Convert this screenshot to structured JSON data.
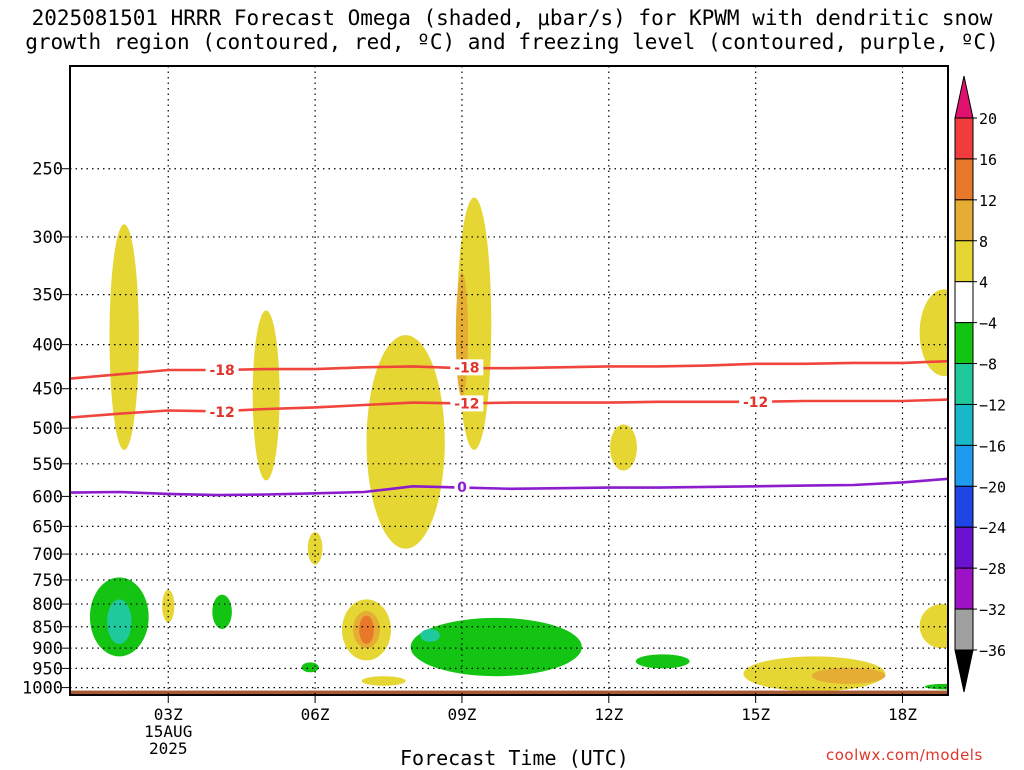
{
  "title_line1": "2025081501 HRRR Forecast Omega (shaded, μbar/s) for KPWM with dendritic snow",
  "title_line2": "growth region (contoured, red, ºC) and freezing level (contoured, purple, ºC)",
  "xlabel": "Forecast Time (UTC)",
  "credit": "coolwx.com/models",
  "chart_data": {
    "type": "heatmap",
    "product": "HRRR time-height cross section",
    "run": "2025081501",
    "station": "KPWM",
    "field_shaded": "Omega",
    "field_units": "μbar/s",
    "x_hours_range": [
      1,
      19.3
    ],
    "x_ticks": [
      {
        "hour": 3,
        "label": "03Z"
      },
      {
        "hour": 6,
        "label": "06Z"
      },
      {
        "hour": 9,
        "label": "09Z"
      },
      {
        "hour": 12,
        "label": "12Z"
      },
      {
        "hour": 15,
        "label": "15Z"
      },
      {
        "hour": 18,
        "label": "18Z"
      }
    ],
    "date_label": [
      "15AUG",
      "2025"
    ],
    "y_pressure_range": [
      1020,
      190
    ],
    "y_ticks": [
      250,
      300,
      350,
      400,
      450,
      500,
      550,
      600,
      650,
      700,
      750,
      800,
      850,
      900,
      950,
      1000
    ],
    "grid": true,
    "colorbar": {
      "levels": [
        20,
        16,
        12,
        8,
        4,
        -4,
        -8,
        -12,
        -16,
        -20,
        -24,
        -28,
        -32,
        -36
      ],
      "colors": [
        "#e0116f",
        "#f03c3c",
        "#e8782a",
        "#e5ad33",
        "#e5d634",
        "#ffffff",
        "#13c413",
        "#1fc99c",
        "#19b8c8",
        "#1e9bee",
        "#1f45e6",
        "#6a12d0",
        "#9e12c6",
        "#a0a0a0",
        "#000000"
      ]
    },
    "contours": [
      {
        "label": "-18",
        "color": "#f0453c",
        "points": [
          [
            1,
            438
          ],
          [
            2,
            433
          ],
          [
            3,
            428
          ],
          [
            4,
            428
          ],
          [
            5,
            427
          ],
          [
            6,
            427
          ],
          [
            7,
            425
          ],
          [
            8,
            424
          ],
          [
            9,
            426
          ],
          [
            10,
            426
          ],
          [
            11,
            425
          ],
          [
            12,
            424
          ],
          [
            13,
            424
          ],
          [
            14,
            423
          ],
          [
            15,
            421
          ],
          [
            16,
            421
          ],
          [
            17,
            420
          ],
          [
            18,
            420
          ],
          [
            19,
            418
          ],
          [
            19.3,
            418
          ]
        ]
      },
      {
        "label": "-12",
        "color": "#f0453c",
        "points": [
          [
            1,
            486
          ],
          [
            2,
            481
          ],
          [
            3,
            477
          ],
          [
            4,
            478
          ],
          [
            5,
            475
          ],
          [
            6,
            473
          ],
          [
            7,
            470
          ],
          [
            8,
            467
          ],
          [
            9,
            468
          ],
          [
            10,
            467
          ],
          [
            11,
            467
          ],
          [
            12,
            467
          ],
          [
            13,
            466
          ],
          [
            14,
            466
          ],
          [
            15,
            466
          ],
          [
            16,
            465
          ],
          [
            17,
            465
          ],
          [
            18,
            465
          ],
          [
            19,
            463
          ],
          [
            19.3,
            463
          ]
        ]
      },
      {
        "label": "0",
        "color": "#8c1ccc",
        "points": [
          [
            1,
            594
          ],
          [
            2,
            593
          ],
          [
            3,
            596
          ],
          [
            4,
            598
          ],
          [
            5,
            597
          ],
          [
            6,
            595
          ],
          [
            7,
            593
          ],
          [
            8,
            584
          ],
          [
            9,
            586
          ],
          [
            10,
            588
          ],
          [
            11,
            587
          ],
          [
            12,
            586
          ],
          [
            13,
            586
          ],
          [
            14,
            585
          ],
          [
            15,
            584
          ],
          [
            16,
            583
          ],
          [
            17,
            582
          ],
          [
            18,
            578
          ],
          [
            19,
            572
          ],
          [
            19.3,
            569
          ]
        ]
      }
    ],
    "contour_labels": [
      {
        "text": "-18",
        "hour": 4.1,
        "p": 428
      },
      {
        "text": "-18",
        "hour": 9.1,
        "p": 425
      },
      {
        "text": "-12",
        "hour": 4.1,
        "p": 479
      },
      {
        "text": "-12",
        "hour": 9.1,
        "p": 468
      },
      {
        "text": "-12",
        "hour": 15.0,
        "p": 466
      },
      {
        "text": "0",
        "hour": 9.0,
        "p": 585
      }
    ],
    "omega_regions": [
      {
        "color": "#e5d634",
        "hour": 2.1,
        "p_top": 290,
        "p_bottom": 530,
        "hour_width": 0.6
      },
      {
        "color": "#e5d634",
        "hour": 5.0,
        "p_top": 365,
        "p_bottom": 575,
        "hour_width": 0.55
      },
      {
        "color": "#e5d634",
        "hour": 9.25,
        "p_top": 270,
        "p_bottom": 530,
        "hour_width": 0.7
      },
      {
        "color": "#e5ad33",
        "hour": 9.0,
        "p_top": 330,
        "p_bottom": 460,
        "hour_width": 0.25
      },
      {
        "color": "#e5d634",
        "hour": 7.85,
        "p_top": 390,
        "p_bottom": 690,
        "hour_width": 1.6
      },
      {
        "color": "#e5d634",
        "hour": 12.3,
        "p_top": 495,
        "p_bottom": 560,
        "hour_width": 0.55
      },
      {
        "color": "#e5d634",
        "hour": 6.0,
        "p_top": 660,
        "p_bottom": 720,
        "hour_width": 0.3
      },
      {
        "color": "#e5d634",
        "hour": 3.0,
        "p_top": 770,
        "p_bottom": 840,
        "hour_width": 0.25
      },
      {
        "color": "#13c413",
        "hour": 2.0,
        "p_top": 745,
        "p_bottom": 920,
        "hour_width": 1.2
      },
      {
        "color": "#1fc99c",
        "hour": 2.0,
        "p_top": 790,
        "p_bottom": 890,
        "hour_width": 0.5
      },
      {
        "color": "#13c413",
        "hour": 4.1,
        "p_top": 780,
        "p_bottom": 855,
        "hour_width": 0.4
      },
      {
        "color": "#e5d634",
        "hour": 7.05,
        "p_top": 790,
        "p_bottom": 930,
        "hour_width": 1.0
      },
      {
        "color": "#e5ad33",
        "hour": 7.05,
        "p_top": 815,
        "p_bottom": 900,
        "hour_width": 0.55
      },
      {
        "color": "#e8782a",
        "hour": 7.05,
        "p_top": 825,
        "p_bottom": 890,
        "hour_width": 0.3
      },
      {
        "color": "#13c413",
        "hour": 9.7,
        "p_top": 830,
        "p_bottom": 970,
        "hour_width": 3.5
      },
      {
        "color": "#1fc99c",
        "hour": 8.35,
        "p_top": 855,
        "p_bottom": 885,
        "hour_width": 0.4
      },
      {
        "color": "#13c413",
        "hour": 13.1,
        "p_top": 915,
        "p_bottom": 950,
        "hour_width": 1.1
      },
      {
        "color": "#13c413",
        "hour": 5.9,
        "p_top": 935,
        "p_bottom": 960,
        "hour_width": 0.35
      },
      {
        "color": "#e5d634",
        "hour": 7.4,
        "p_top": 970,
        "p_bottom": 995,
        "hour_width": 0.9
      },
      {
        "color": "#e5d634",
        "hour": 16.2,
        "p_top": 920,
        "p_bottom": 1010,
        "hour_width": 2.9
      },
      {
        "color": "#e5ad33",
        "hour": 16.9,
        "p_top": 948,
        "p_bottom": 990,
        "hour_width": 1.5
      },
      {
        "color": "#e5d634",
        "hour": 18.85,
        "p_top": 345,
        "p_bottom": 435,
        "hour_width": 1.0
      },
      {
        "color": "#e5d634",
        "hour": 18.8,
        "p_top": 800,
        "p_bottom": 900,
        "hour_width": 0.9
      },
      {
        "color": "#13c413",
        "hour": 18.9,
        "p_top": 990,
        "p_bottom": 1005,
        "hour_width": 0.9
      },
      {
        "color": "#13c413",
        "hour": 19.3,
        "p_top": 525,
        "p_bottom": 570,
        "hour_width": 0.2
      }
    ],
    "surface_terrain": {
      "color": "#a85a33",
      "p_top": 1008
    }
  }
}
